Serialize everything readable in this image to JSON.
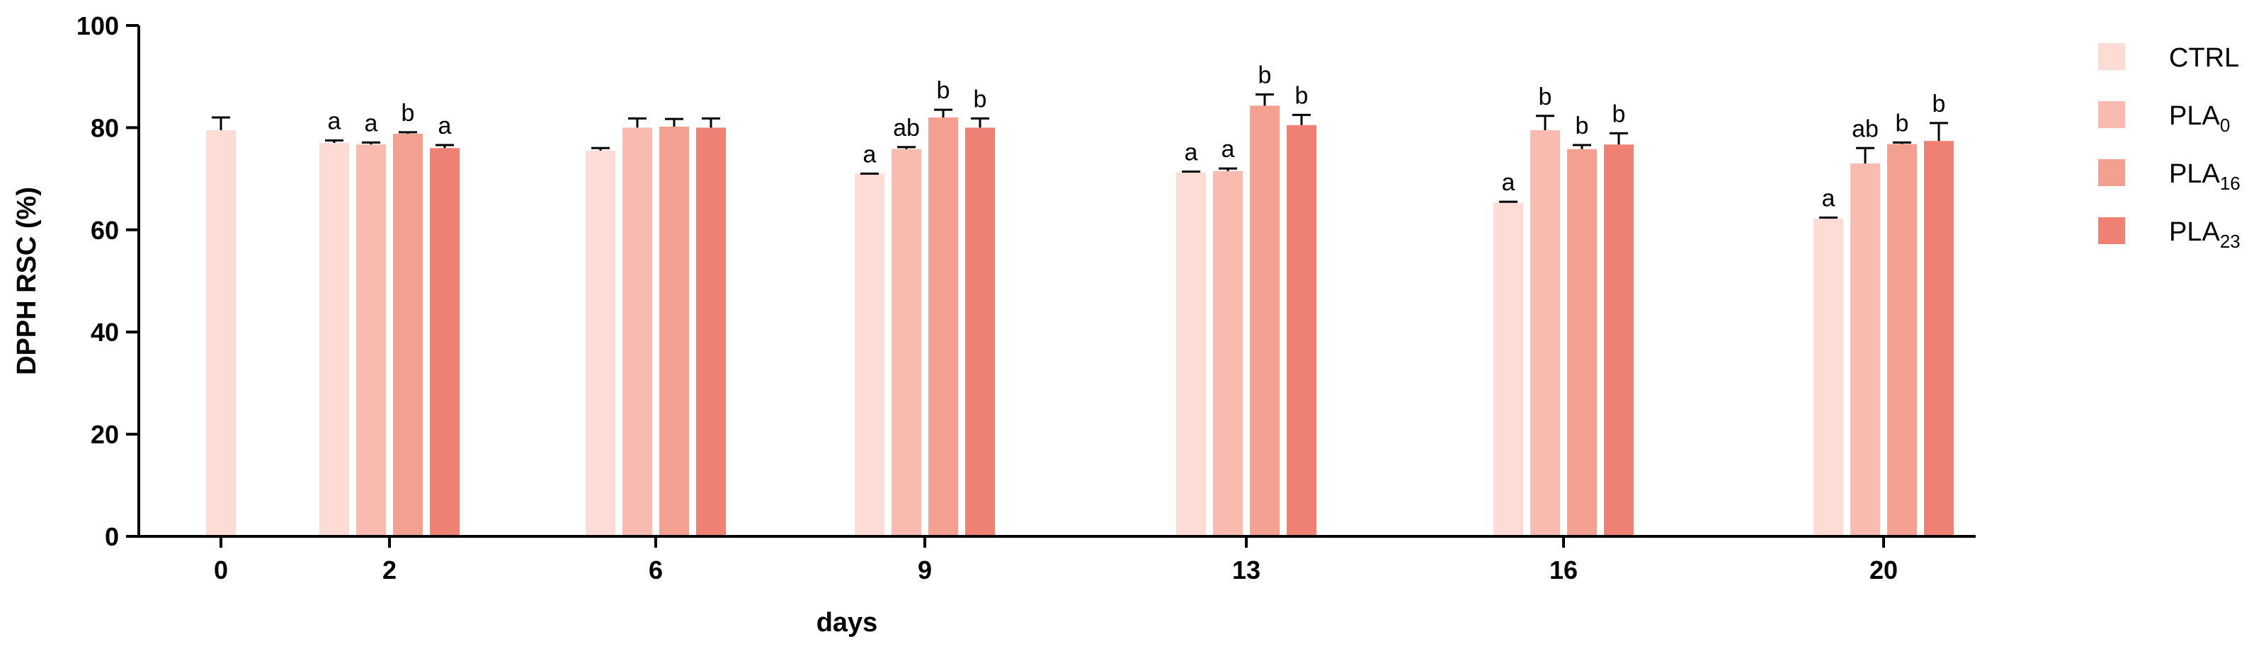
{
  "chart_data": {
    "type": "bar",
    "title": "",
    "xlabel": "days",
    "ylabel": "DPPH RSC (%)",
    "ylim": [
      0,
      100
    ],
    "yticks": [
      0,
      20,
      40,
      60,
      80,
      100
    ],
    "categories": [
      "0",
      "2",
      "6",
      "9",
      "13",
      "16",
      "20"
    ],
    "grid": false,
    "legend_position": "right",
    "series": [
      {
        "name": "CTRL",
        "name_base": "CTRL",
        "name_sub": "",
        "color": "#fddcd6",
        "values": [
          79.5,
          77.0,
          75.5,
          71.0,
          71.2,
          65.3,
          62.2
        ],
        "errors": [
          2.5,
          0.5,
          0.5,
          0,
          0.2,
          0.2,
          0.2
        ],
        "labels": [
          "",
          "a",
          "",
          "a",
          "a",
          "a",
          "a"
        ]
      },
      {
        "name": "PLA0",
        "name_base": "PLA",
        "name_sub": "0",
        "color": "#f9bbb0",
        "values": [
          null,
          76.7,
          80.0,
          75.8,
          71.5,
          79.5,
          73.0
        ],
        "errors": [
          null,
          0.4,
          1.8,
          0.4,
          0.5,
          2.8,
          3.0
        ],
        "labels": [
          "",
          "a",
          "",
          "ab",
          "a",
          "b",
          "ab"
        ]
      },
      {
        "name": "PLA16",
        "name_base": "PLA",
        "name_sub": "16",
        "color": "#f4a091",
        "values": [
          null,
          78.8,
          80.2,
          82.0,
          84.3,
          75.8,
          76.8
        ],
        "errors": [
          null,
          0.3,
          1.5,
          1.5,
          2.2,
          0.8,
          0.3
        ],
        "labels": [
          "",
          "b",
          "",
          "b",
          "b",
          "b",
          "b"
        ]
      },
      {
        "name": "PLA23",
        "name_base": "PLA",
        "name_sub": "23",
        "color": "#ee8174",
        "values": [
          null,
          76.0,
          80.0,
          80.0,
          80.5,
          76.7,
          77.4
        ],
        "errors": [
          null,
          0.6,
          1.8,
          1.8,
          2.0,
          2.2,
          3.5
        ],
        "labels": [
          "",
          "a",
          "",
          "b",
          "b",
          "b",
          "b"
        ]
      }
    ]
  }
}
